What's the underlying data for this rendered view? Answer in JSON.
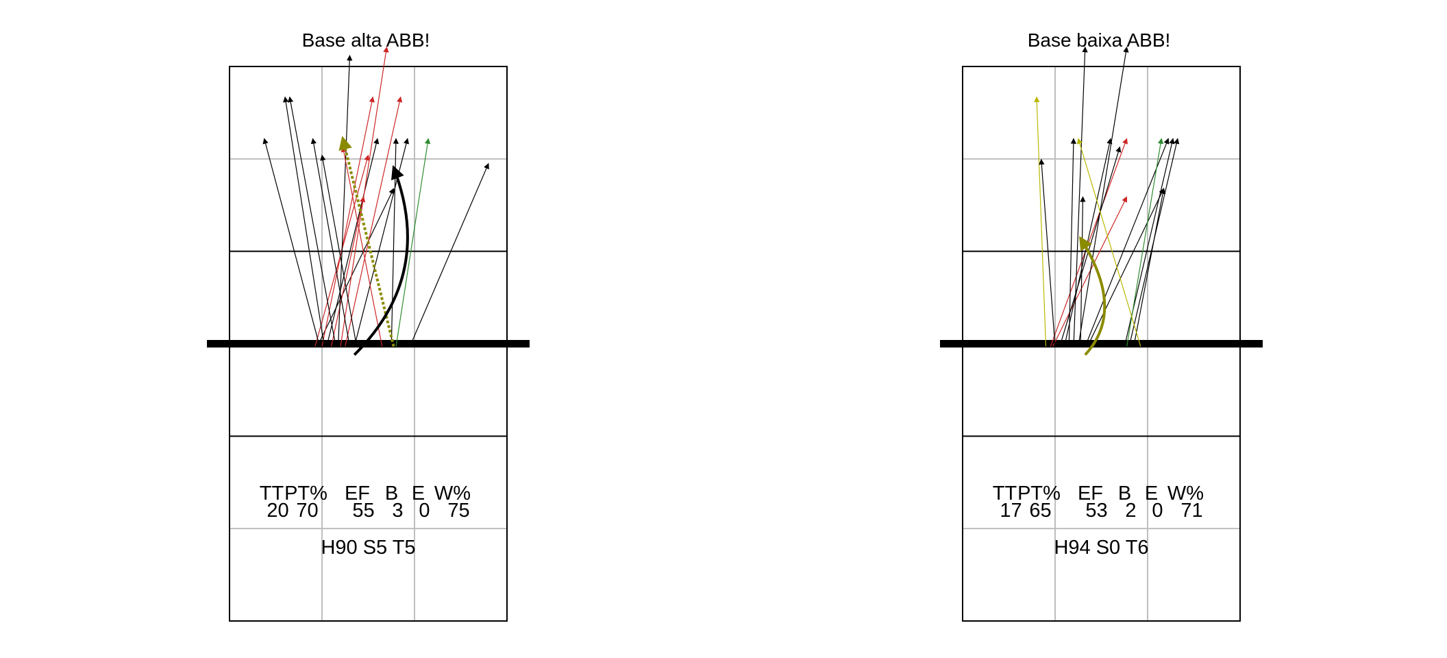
{
  "colors": {
    "court_line": "#000000",
    "grid_line": "#bebebe",
    "net": "#000000",
    "attack_default": "#000000",
    "attack_red": "#cd2626",
    "attack_olive": "#8b8b00",
    "attack_green": "#2e8b2e",
    "attack_yellow": "#b8b800"
  },
  "panels": [
    {
      "id": "base-alta",
      "title": "Base alta ABB!",
      "stats_header": [
        "TT",
        "PT%",
        "EF",
        "B",
        "E",
        "W%"
      ],
      "stats_values": [
        "20",
        "70",
        "55",
        "3",
        "0",
        "75"
      ],
      "summary": "H90 S5 T5",
      "arrows": [
        {
          "from": [
            1.85,
            3.1
          ],
          "to": [
            3.0,
            5.4
          ],
          "color": "red",
          "style": "thin"
        },
        {
          "from": [
            1.9,
            3.1
          ],
          "to": [
            3.55,
            5.0
          ],
          "color": "black",
          "style": "thin"
        },
        {
          "from": [
            1.95,
            3.1
          ],
          "to": [
            0.75,
            5.6
          ],
          "color": "black",
          "style": "thin"
        },
        {
          "from": [
            2.0,
            3.1
          ],
          "to": [
            3.1,
            6.1
          ],
          "color": "red",
          "style": "thin"
        },
        {
          "from": [
            2.05,
            3.1
          ],
          "to": [
            1.2,
            6.1
          ],
          "color": "black",
          "style": "thin"
        },
        {
          "from": [
            2.1,
            3.1
          ],
          "to": [
            3.2,
            5.6
          ],
          "color": "black",
          "style": "thin"
        },
        {
          "from": [
            2.2,
            3.1
          ],
          "to": [
            2.9,
            4.9
          ],
          "color": "red",
          "style": "thin"
        },
        {
          "from": [
            2.3,
            3.1
          ],
          "to": [
            1.3,
            6.1
          ],
          "color": "black",
          "style": "thin"
        },
        {
          "from": [
            2.35,
            3.1
          ],
          "to": [
            2.6,
            6.6
          ],
          "color": "black",
          "style": "thin"
        },
        {
          "from": [
            2.4,
            3.1
          ],
          "to": [
            3.4,
            6.7
          ],
          "color": "red",
          "style": "thin"
        },
        {
          "from": [
            2.5,
            3.1
          ],
          "to": [
            3.7,
            6.1
          ],
          "color": "red",
          "style": "thin"
        },
        {
          "from": [
            2.6,
            3.1
          ],
          "to": [
            1.8,
            5.6
          ],
          "color": "black",
          "style": "thin"
        },
        {
          "from": [
            2.7,
            3.1
          ],
          "to": [
            3.85,
            5.6
          ],
          "color": "black",
          "style": "thin"
        },
        {
          "from": [
            2.75,
            3.1
          ],
          "to": [
            2.0,
            5.4
          ],
          "color": "black",
          "style": "thin"
        },
        {
          "from": [
            3.3,
            3.1
          ],
          "to": [
            2.45,
            5.5
          ],
          "color": "red",
          "style": "thin"
        },
        {
          "from": [
            3.5,
            3.1
          ],
          "to": [
            3.6,
            5.6
          ],
          "color": "black",
          "style": "thin"
        },
        {
          "from": [
            3.6,
            3.1
          ],
          "to": [
            4.3,
            5.6
          ],
          "color": "green",
          "style": "thin"
        },
        {
          "from": [
            3.9,
            3.1
          ],
          "to": [
            5.6,
            5.3
          ],
          "color": "black",
          "style": "thin"
        },
        {
          "from": [
            3.55,
            3.1
          ],
          "to": [
            2.45,
            5.6
          ],
          "color": "olive",
          "style": "dashed-thick"
        },
        {
          "from": [
            2.7,
            3.0
          ],
          "to": [
            3.55,
            5.25
          ],
          "color": "black",
          "style": "curve-thick"
        }
      ]
    },
    {
      "id": "base-baixa",
      "title": "Base baixa ABB!",
      "stats_header": [
        "TT",
        "PT%",
        "EF",
        "B",
        "E",
        "W%"
      ],
      "stats_values": [
        "17",
        "65",
        "53",
        "2",
        "0",
        "71"
      ],
      "summary": "H94 S0 T6",
      "arrows": [
        {
          "from": [
            1.8,
            3.1
          ],
          "to": [
            1.6,
            6.1
          ],
          "color": "yellow",
          "style": "thin"
        },
        {
          "from": [
            1.9,
            3.1
          ],
          "to": [
            3.55,
            5.6
          ],
          "color": "red",
          "style": "thin"
        },
        {
          "from": [
            1.95,
            3.1
          ],
          "to": [
            3.55,
            4.9
          ],
          "color": "red",
          "style": "thin"
        },
        {
          "from": [
            2.0,
            3.1
          ],
          "to": [
            1.7,
            5.35
          ],
          "color": "black",
          "style": "thin"
        },
        {
          "from": [
            2.1,
            3.1
          ],
          "to": [
            3.4,
            5.5
          ],
          "color": "black",
          "style": "thin"
        },
        {
          "from": [
            2.2,
            3.1
          ],
          "to": [
            3.2,
            5.6
          ],
          "color": "black",
          "style": "thin"
        },
        {
          "from": [
            2.3,
            3.1
          ],
          "to": [
            2.4,
            5.6
          ],
          "color": "black",
          "style": "thin"
        },
        {
          "from": [
            2.4,
            3.1
          ],
          "to": [
            2.65,
            6.7
          ],
          "color": "black",
          "style": "thin"
        },
        {
          "from": [
            2.5,
            3.1
          ],
          "to": [
            3.55,
            6.7
          ],
          "color": "black",
          "style": "thin"
        },
        {
          "from": [
            2.55,
            3.1
          ],
          "to": [
            2.6,
            4.9
          ],
          "color": "black",
          "style": "thin"
        },
        {
          "from": [
            2.65,
            3.1
          ],
          "to": [
            4.45,
            5.6
          ],
          "color": "black",
          "style": "thin"
        },
        {
          "from": [
            2.7,
            3.1
          ],
          "to": [
            4.35,
            5.0
          ],
          "color": "black",
          "style": "thin"
        },
        {
          "from": [
            3.5,
            3.1
          ],
          "to": [
            4.55,
            5.6
          ],
          "color": "black",
          "style": "thin"
        },
        {
          "from": [
            3.6,
            3.1
          ],
          "to": [
            4.65,
            5.6
          ],
          "color": "black",
          "style": "thin"
        },
        {
          "from": [
            3.55,
            3.1
          ],
          "to": [
            4.3,
            5.6
          ],
          "color": "green",
          "style": "thin"
        },
        {
          "from": [
            3.7,
            3.1
          ],
          "to": [
            4.35,
            5.0
          ],
          "color": "black",
          "style": "thin"
        },
        {
          "from": [
            3.85,
            3.1
          ],
          "to": [
            2.5,
            5.6
          ],
          "color": "yellow",
          "style": "thin"
        },
        {
          "from": [
            2.65,
            3.0
          ],
          "to": [
            2.55,
            4.4
          ],
          "color": "olive",
          "style": "curve-thick"
        }
      ]
    }
  ]
}
